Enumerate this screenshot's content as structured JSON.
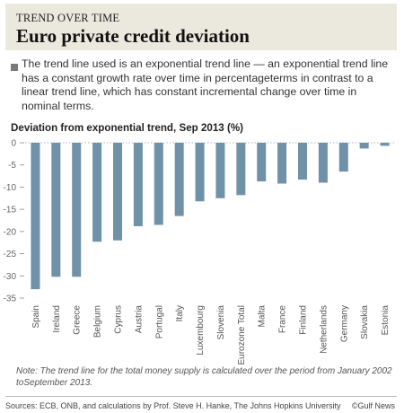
{
  "header": {
    "kicker": "TREND OVER TIME",
    "title": "Euro private credit deviation"
  },
  "description": "The trend line used is an exponential trend line — an exponential trend line has a constant growth rate over time in percentageterms in contrast to a linear trend line, which has constant incremental change over time in nominal terms.",
  "chart_data": {
    "type": "bar",
    "title": "Deviation from exponential trend, Sep 2013 (%)",
    "categories": [
      "Spain",
      "Ireland",
      "Greece",
      "Belgium",
      "Cyprus",
      "Austria",
      "Portugal",
      "Italy",
      "Luxembourg",
      "Slovenia",
      "Eurozone Total",
      "Malta",
      "France",
      "Finland",
      "Netherlands",
      "Germany",
      "Slovakia",
      "Estonia"
    ],
    "values": [
      -33,
      -30.2,
      -30.2,
      -22.3,
      -22,
      -18.8,
      -18.5,
      -16.5,
      -13.2,
      -12.5,
      -11.8,
      -8.7,
      -9.2,
      -8.3,
      -9,
      -6.5,
      -1.3,
      -0.7
    ],
    "ylim": [
      -35,
      0
    ],
    "yticks": [
      0,
      -5,
      -10,
      -15,
      -20,
      -25,
      -30,
      -35
    ],
    "bar_color": "#6f92a8",
    "grid": false
  },
  "note": "Note: The trend line for the total money supply is calculated over the period from January 2002 toSeptember 2013.",
  "source": "Sources: ECB, ONB, and calculations by Prof. Steve H. Hanke, The Johns Hopkins University",
  "brand": "©Gulf News"
}
